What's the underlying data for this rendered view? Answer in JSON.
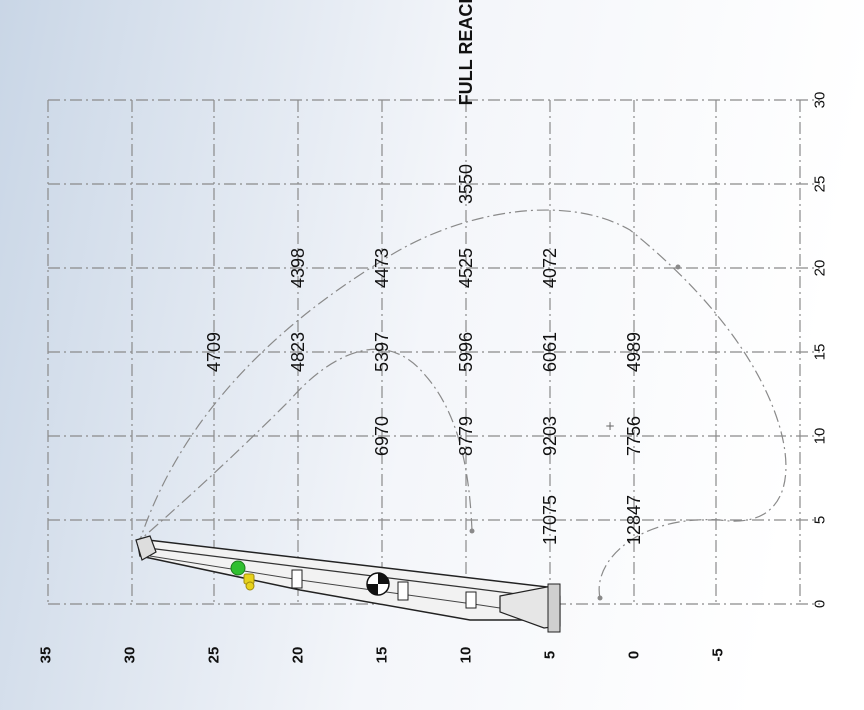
{
  "diagram": {
    "reach_ticks": [
      "0",
      "5",
      "10",
      "15",
      "20",
      "25",
      "30"
    ],
    "height_ticks": [
      "35",
      "30",
      "25",
      "20",
      "15",
      "10",
      "5",
      "0",
      "-5"
    ],
    "full_reach_label": "FULL REACH",
    "load_chart": [
      {
        "reach": 15,
        "height": 25,
        "capacity": "4709"
      },
      {
        "reach": 20,
        "height": 20,
        "capacity": "4398"
      },
      {
        "reach": 15,
        "height": 20,
        "capacity": "4823"
      },
      {
        "reach": 20,
        "height": 15,
        "capacity": "4473"
      },
      {
        "reach": 15,
        "height": 15,
        "capacity": "5397"
      },
      {
        "reach": 10,
        "height": 15,
        "capacity": "6970"
      },
      {
        "reach": 25,
        "height": 10,
        "capacity": "3550"
      },
      {
        "reach": 20,
        "height": 10,
        "capacity": "4525"
      },
      {
        "reach": 15,
        "height": 10,
        "capacity": "5996"
      },
      {
        "reach": 10,
        "height": 10,
        "capacity": "8779"
      },
      {
        "reach": 20,
        "height": 5,
        "capacity": "4072"
      },
      {
        "reach": 15,
        "height": 5,
        "capacity": "6061"
      },
      {
        "reach": 10,
        "height": 5,
        "capacity": "9203"
      },
      {
        "reach": 5,
        "height": 5,
        "capacity": "17075"
      },
      {
        "reach": 15,
        "height": 0,
        "capacity": "4989"
      },
      {
        "reach": 10,
        "height": 0,
        "capacity": "7756"
      },
      {
        "reach": 5,
        "height": 0,
        "capacity": "12847"
      }
    ],
    "colors": {
      "grid": "#8a8a8a",
      "envelope": "#8a8a8a",
      "text": "#111111",
      "boom_fill": "#f2f2f2",
      "boom_stroke": "#222222",
      "green_marker": "#2fbf2f",
      "yellow_marker": "#e8d21a",
      "background_left": "#c9d6e6",
      "background_right": "#ffffff"
    }
  }
}
